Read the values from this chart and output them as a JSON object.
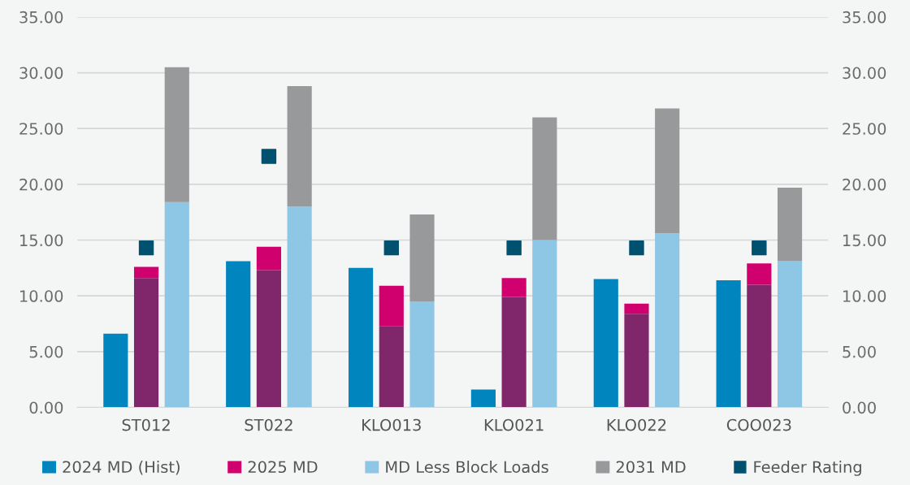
{
  "chart_data": {
    "type": "bar",
    "stacked": true,
    "categories": [
      null,
      "ST012",
      null,
      null,
      null,
      "ST022",
      null,
      null,
      null,
      "KLO013",
      null,
      null,
      null,
      "KLO021",
      null,
      null,
      null,
      "KLO022",
      null,
      null,
      null,
      "COO023",
      null
    ],
    "series": [
      {
        "name": "2024 MD (Hist)",
        "color": "#0085bf",
        "values": [
          6.6,
          null,
          null,
          null,
          13.1,
          null,
          null,
          null,
          12.5,
          null,
          null,
          null,
          1.6,
          null,
          null,
          null,
          11.5,
          null,
          null,
          null,
          11.4,
          null,
          null
        ]
      },
      {
        "color": "#80266a",
        "values": [
          null,
          11.6,
          null,
          null,
          null,
          12.3,
          null,
          null,
          null,
          7.3,
          null,
          null,
          null,
          9.9,
          null,
          null,
          null,
          8.4,
          null,
          null,
          null,
          11.0,
          null
        ]
      },
      {
        "name": "2025 MD",
        "color": "#d0006f",
        "values": [
          null,
          1.0,
          null,
          null,
          null,
          2.1,
          null,
          null,
          null,
          3.6,
          null,
          null,
          null,
          1.7,
          null,
          null,
          null,
          0.9,
          null,
          null,
          null,
          1.9,
          null
        ]
      },
      {
        "name": "MD Less Block Loads",
        "color": "#8ec6e6",
        "values": [
          null,
          null,
          18.4,
          null,
          null,
          null,
          18.0,
          null,
          null,
          null,
          9.5,
          null,
          null,
          null,
          15.0,
          null,
          null,
          null,
          15.6,
          null,
          null,
          null,
          13.1
        ]
      },
      {
        "name": "2031 MD",
        "color": "#98999b",
        "values": [
          null,
          null,
          12.1,
          null,
          null,
          null,
          10.8,
          null,
          null,
          null,
          7.8,
          null,
          null,
          null,
          11.0,
          null,
          null,
          null,
          11.2,
          null,
          null,
          null,
          6.6
        ]
      },
      {
        "name": "Feeder Rating",
        "type": "scatter",
        "color": "#00506f",
        "x": [
          "ST012",
          "ST022",
          "KLO013",
          "KLO021",
          "KLO022",
          "COO023"
        ],
        "values": [
          14.3,
          22.5,
          14.3,
          14.3,
          14.3,
          14.3
        ]
      }
    ],
    "marker": "square",
    "ylim": [
      0,
      35
    ],
    "yticks": [
      {
        "value": 0,
        "label": "0.00"
      },
      {
        "value": 5,
        "label": "5.00"
      },
      {
        "value": 10,
        "label": "10.00"
      },
      {
        "value": 15,
        "label": "15.00"
      },
      {
        "value": 20,
        "label": "20.00"
      },
      {
        "value": 25,
        "label": "25.00"
      },
      {
        "value": 30,
        "label": "30.00"
      },
      {
        "value": 35,
        "label": "35.00"
      }
    ],
    "y2lim": [
      0,
      35
    ],
    "y2ticks": [
      {
        "value": 0,
        "label": "0.00"
      },
      {
        "value": 5,
        "label": "5.00"
      },
      {
        "value": 10,
        "label": "10.00"
      },
      {
        "value": 15,
        "label": "15.00"
      },
      {
        "value": 20,
        "label": "20.00"
      },
      {
        "value": 25,
        "label": "25.00"
      },
      {
        "value": 30,
        "label": "30.00"
      },
      {
        "value": 35,
        "label": "35.00"
      }
    ],
    "grid": "y",
    "legend": "bottom"
  }
}
